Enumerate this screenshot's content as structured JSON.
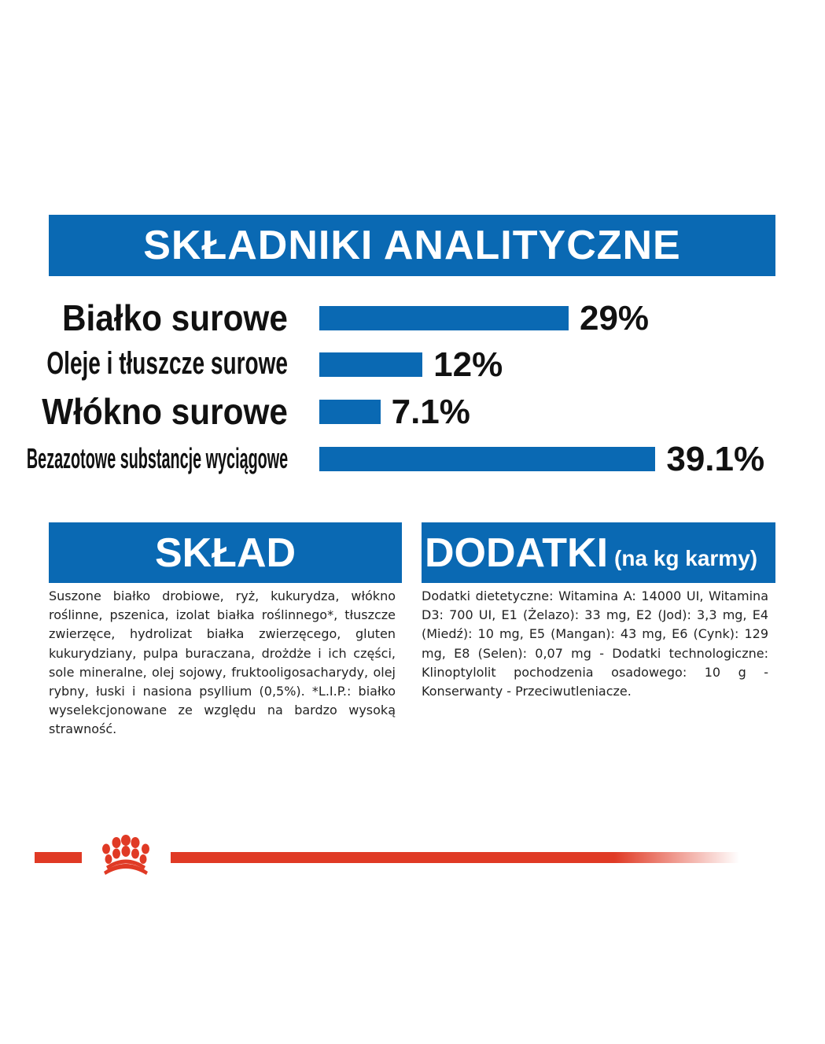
{
  "header": {
    "title": "SKŁADNIKI ANALITYCZNE"
  },
  "chart_data": {
    "type": "bar",
    "orientation": "horizontal",
    "categories": [
      "Białko surowe",
      "Oleje i tłuszcze surowe",
      "Włókno surowe",
      "Bezazotowe substancje wyciągowe"
    ],
    "values": [
      29,
      12,
      7.1,
      39.1
    ],
    "value_labels": [
      "29%",
      "12%",
      "7.1%",
      "39.1%"
    ],
    "unit": "%",
    "bar_color": "#0a69b3",
    "grid": false
  },
  "sklad": {
    "title": "SKŁAD",
    "text": "Suszone białko drobiowe, ryż, kukurydza, włókno roślinne, pszenica, izolat białka roślinnego*, tłuszcze zwierzęce, hydrolizat białka zwierzęcego, gluten kukurydziany, pulpa buraczana, drożdże i ich części, sole mineralne, olej sojowy, fruktooligosacharydy, olej rybny, łuski i nasiona psyllium (0,5%). *L.I.P.: białko wyselekcjonowane ze względu na bardzo wysoką strawność."
  },
  "dodatki": {
    "title": "DODATKI",
    "subtitle": "(na kg karmy)",
    "text": "Dodatki dietetyczne: Witamina A: 14000 UI, Witamina D3: 700 UI, E1 (Żelazo): 33 mg, E2 (Jod): 3,3 mg, E4 (Miedź): 10 mg, E5 (Mangan): 43 mg, E6 (Cynk): 129 mg, E8 (Selen): 0,07 mg - Dodatki technologiczne: Klinoptylolit pochodzenia osadowego: 10 g - Konserwanty - Przeciwutleniacze."
  },
  "colors": {
    "brand_blue": "#0a69b3",
    "brand_red": "#e03a25"
  },
  "footer": {
    "logo": "royal-canin-crown-icon"
  }
}
